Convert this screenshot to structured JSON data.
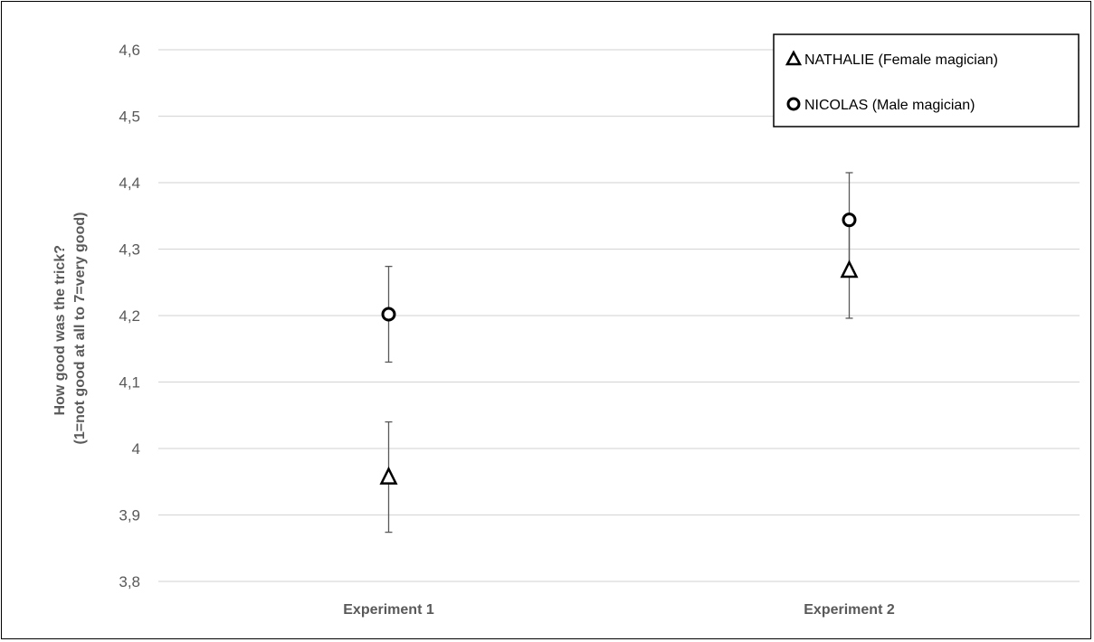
{
  "chart_data": {
    "type": "scatter",
    "title": "",
    "xlabel": "",
    "ylabel": [
      "How good was the trick?",
      "(1=not good at all to 7=very good)"
    ],
    "categories": [
      "Experiment 1",
      "Experiment 2"
    ],
    "ylim": [
      3.8,
      4.6
    ],
    "yticks": [
      "3,8",
      "3,9",
      "4",
      "4,1",
      "4,2",
      "4,3",
      "4,4",
      "4,5",
      "4,6"
    ],
    "ytick_values": [
      3.8,
      3.9,
      4.0,
      4.1,
      4.2,
      4.3,
      4.4,
      4.5,
      4.6
    ],
    "grid": true,
    "legend_position": "top-right",
    "series": [
      {
        "name": "NATHALIE (Female magician)",
        "marker": "triangle",
        "values": [
          3.957,
          4.268
        ],
        "error": [
          0.083,
          0.072
        ]
      },
      {
        "name": "NICOLAS (Male magician)",
        "marker": "circle",
        "values": [
          4.202,
          4.344
        ],
        "error": [
          0.072,
          0.071
        ]
      }
    ],
    "colors": {
      "marker_stroke": "#000000",
      "gridline": "#d9d9d9",
      "label": "#595959",
      "error_bar": "#595959"
    }
  }
}
